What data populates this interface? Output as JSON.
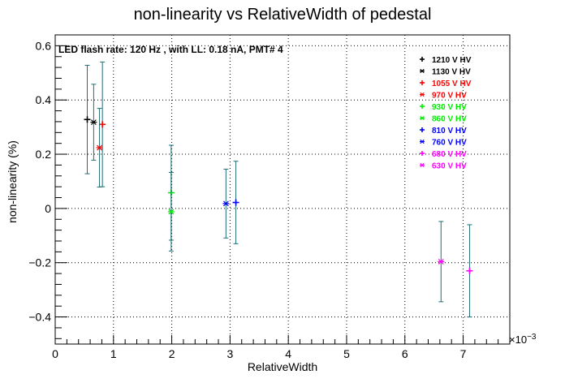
{
  "chart_data": {
    "type": "scatter",
    "title": "non-linearity vs RelativeWidth of pedestal",
    "annotation": "LED flash rate: 120 Hz , with LL: 0.18 nA, PMT# 4",
    "xlabel": "RelativeWidth",
    "ylabel": "non-linearity (%)",
    "x_exponent_label": "×10",
    "x_exponent_power": "−3",
    "xlim": [
      0,
      0.0078
    ],
    "ylim": [
      -0.5,
      0.64
    ],
    "x_ticks": [
      0,
      0.001,
      0.002,
      0.003,
      0.004,
      0.005,
      0.006,
      0.007
    ],
    "x_tick_labels": [
      "0",
      "1",
      "2",
      "3",
      "4",
      "5",
      "6",
      "7"
    ],
    "y_ticks": [
      -0.4,
      -0.2,
      0,
      0.2,
      0.4,
      0.6
    ],
    "y_tick_labels": [
      "−0.4",
      "−0.2",
      "0",
      "0.2",
      "0.4",
      "0.6"
    ],
    "grid": true,
    "legend_position": "top-right",
    "error_bar_color": "#1f6f75",
    "series": [
      {
        "name": "1210 V HV",
        "color": "#000000",
        "marker": "+",
        "points": [
          {
            "x": 0.00055,
            "y": 0.328,
            "err": 0.2
          }
        ]
      },
      {
        "name": "1130 V HV",
        "color": "#000000",
        "marker": "*",
        "points": [
          {
            "x": 0.00066,
            "y": 0.318,
            "err": 0.14
          }
        ]
      },
      {
        "name": "1055 V HV",
        "color": "#ff0000",
        "marker": "+",
        "points": [
          {
            "x": 0.00081,
            "y": 0.31,
            "err": 0.23
          }
        ]
      },
      {
        "name": "970 V HV",
        "color": "#ff0000",
        "marker": "*",
        "points": [
          {
            "x": 0.00076,
            "y": 0.224,
            "err": 0.145
          }
        ]
      },
      {
        "name": "930 V HV",
        "color": "#00ee00",
        "marker": "+",
        "points": [
          {
            "x": 0.00199,
            "y": 0.058,
            "err": 0.175
          }
        ]
      },
      {
        "name": "860 V HV",
        "color": "#00ee00",
        "marker": "*",
        "points": [
          {
            "x": 0.00199,
            "y": -0.012,
            "err": 0.145
          }
        ]
      },
      {
        "name": "810 V HV",
        "color": "#0000ff",
        "marker": "+",
        "points": [
          {
            "x": 0.0031,
            "y": 0.022,
            "err": 0.152
          }
        ]
      },
      {
        "name": "760 V HV",
        "color": "#0000ff",
        "marker": "*",
        "points": [
          {
            "x": 0.00293,
            "y": 0.018,
            "err": 0.127
          }
        ]
      },
      {
        "name": "680 V HV",
        "color": "#ff00ff",
        "marker": "+",
        "points": [
          {
            "x": 0.00711,
            "y": -0.23,
            "err": 0.17
          }
        ]
      },
      {
        "name": "630 V HV",
        "color": "#ff00ff",
        "marker": "*",
        "points": [
          {
            "x": 0.00662,
            "y": -0.196,
            "err": 0.148
          }
        ]
      }
    ]
  }
}
